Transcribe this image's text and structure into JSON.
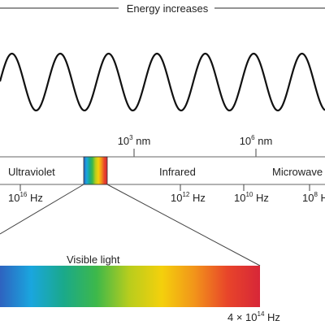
{
  "header": {
    "energy_label": "Energy increases"
  },
  "upper_scale": [
    {
      "base": "10",
      "exp": "3",
      "unit": " nm"
    },
    {
      "base": "10",
      "exp": "6",
      "unit": " nm"
    }
  ],
  "regions": {
    "ultraviolet": "Ultraviolet",
    "infrared": "Infrared",
    "microwave": "Microwave"
  },
  "frequency_scale": [
    {
      "base": "10",
      "exp": "16",
      "unit": " Hz"
    },
    {
      "base": "10",
      "exp": "12",
      "unit": " Hz"
    },
    {
      "base": "10",
      "exp": "10",
      "unit": " Hz"
    },
    {
      "base": "10",
      "exp": "8",
      "unit": " Hz"
    }
  ],
  "visible": {
    "label": "Visible light",
    "endpoint": {
      "prefix": "4 × ",
      "base": "10",
      "exp": "14",
      "unit": " Hz"
    }
  },
  "colors": {
    "spectrum": [
      "#2f5fbe",
      "#1aa6de",
      "#1aa98a",
      "#3db84a",
      "#b8cd1d",
      "#f4d00c",
      "#f2941a",
      "#e8452a",
      "#d72638"
    ]
  }
}
